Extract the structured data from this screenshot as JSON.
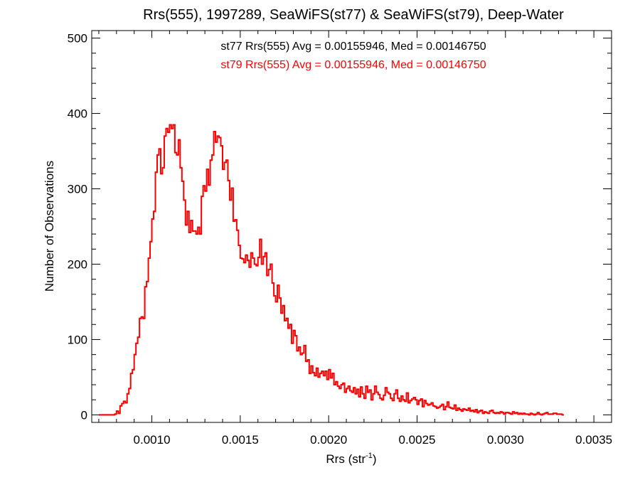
{
  "colors": {
    "st77": "#000000",
    "st79": "#ff0000"
  },
  "chart_data": {
    "type": "histogram-step",
    "title": "Rrs(555), 1997289, SeaWiFS(st77) & SeaWiFS(st79), Deep-Water",
    "xlabel_main": "Rrs (str",
    "xlabel_sup": "-1",
    "xlabel_close": ")",
    "ylabel": "Number of Observations",
    "xlim": [
      0.00066,
      0.0036
    ],
    "ylim": [
      -10,
      510
    ],
    "xticks": [
      0.001,
      0.0015,
      0.002,
      0.0025,
      0.003,
      0.0035
    ],
    "xtick_labels": [
      "0.0010",
      "0.0015",
      "0.0020",
      "0.0025",
      "0.0030",
      "0.0035"
    ],
    "yticks": [
      0,
      100,
      200,
      300,
      400,
      500
    ],
    "ytick_labels": [
      "0",
      "100",
      "200",
      "300",
      "400",
      "500"
    ],
    "stats": [
      {
        "text": "st77 Rrs(555) Avg = 0.00155946, Med = 0.00146750",
        "color": "#000000"
      },
      {
        "text": "st79 Rrs(555) Avg = 0.00155946, Med = 0.00146750",
        "color": "#ff0000"
      }
    ],
    "bin_width": 1e-05,
    "series": [
      {
        "name": "st79",
        "color": "#ff0000",
        "x0": 0.0007,
        "values": [
          0,
          0,
          0,
          0,
          0,
          0,
          0,
          0,
          0,
          1,
          5,
          2,
          12,
          15,
          18,
          16,
          28,
          35,
          55,
          60,
          80,
          95,
          103,
          128,
          130,
          128,
          170,
          177,
          208,
          230,
          260,
          270,
          322,
          345,
          353,
          320,
          328,
          370,
          380,
          375,
          385,
          380,
          385,
          348,
          345,
          365,
          328,
          310,
          285,
          252,
          270,
          242,
          258,
          244,
          244,
          240,
          249,
          240,
          290,
          304,
          297,
          326,
          305,
          338,
          345,
          376,
          362,
          370,
          368,
          357,
          326,
          335,
          338,
          311,
          285,
          301,
          257,
          259,
          245,
          225,
          208,
          207,
          202,
          212,
          205,
          196,
          215,
          208,
          200,
          198,
          209,
          233,
          200,
          210,
          215,
          185,
          193,
          200,
          175,
          158,
          150,
          172,
          155,
          135,
          145,
          125,
          128,
          115,
          120,
          95,
          112,
          105,
          85,
          90,
          80,
          82,
          92,
          71,
          73,
          55,
          65,
          56,
          52,
          62,
          50,
          55,
          58,
          52,
          58,
          47,
          60,
          49,
          55,
          40,
          44,
          38,
          35,
          40,
          42,
          30,
          35,
          38,
          32,
          30,
          36,
          28,
          34,
          24,
          37,
          28,
          22,
          38,
          30,
          33,
          20,
          28,
          38,
          30,
          27,
          22,
          20,
          26,
          36,
          30,
          28,
          22,
          19,
          28,
          33,
          22,
          18,
          25,
          20,
          18,
          29,
          16,
          19,
          21,
          23,
          20,
          14,
          19,
          21,
          11,
          19,
          15,
          13,
          14,
          16,
          12,
          11,
          9,
          10,
          12,
          14,
          7,
          11,
          17,
          10,
          9,
          8,
          13,
          6,
          9,
          7,
          5,
          8,
          7,
          6,
          9,
          5,
          6,
          4,
          7,
          3,
          5,
          6,
          2,
          4,
          3,
          2,
          5,
          6,
          3,
          2,
          3,
          2,
          4,
          3,
          1,
          3,
          3,
          2,
          1,
          4,
          2,
          3,
          1,
          2,
          1,
          2,
          1,
          1,
          0,
          2,
          1,
          0,
          1,
          3,
          1,
          0,
          1,
          2,
          3,
          1,
          1,
          1,
          2,
          2,
          1,
          1,
          1,
          0
        ]
      }
    ]
  }
}
